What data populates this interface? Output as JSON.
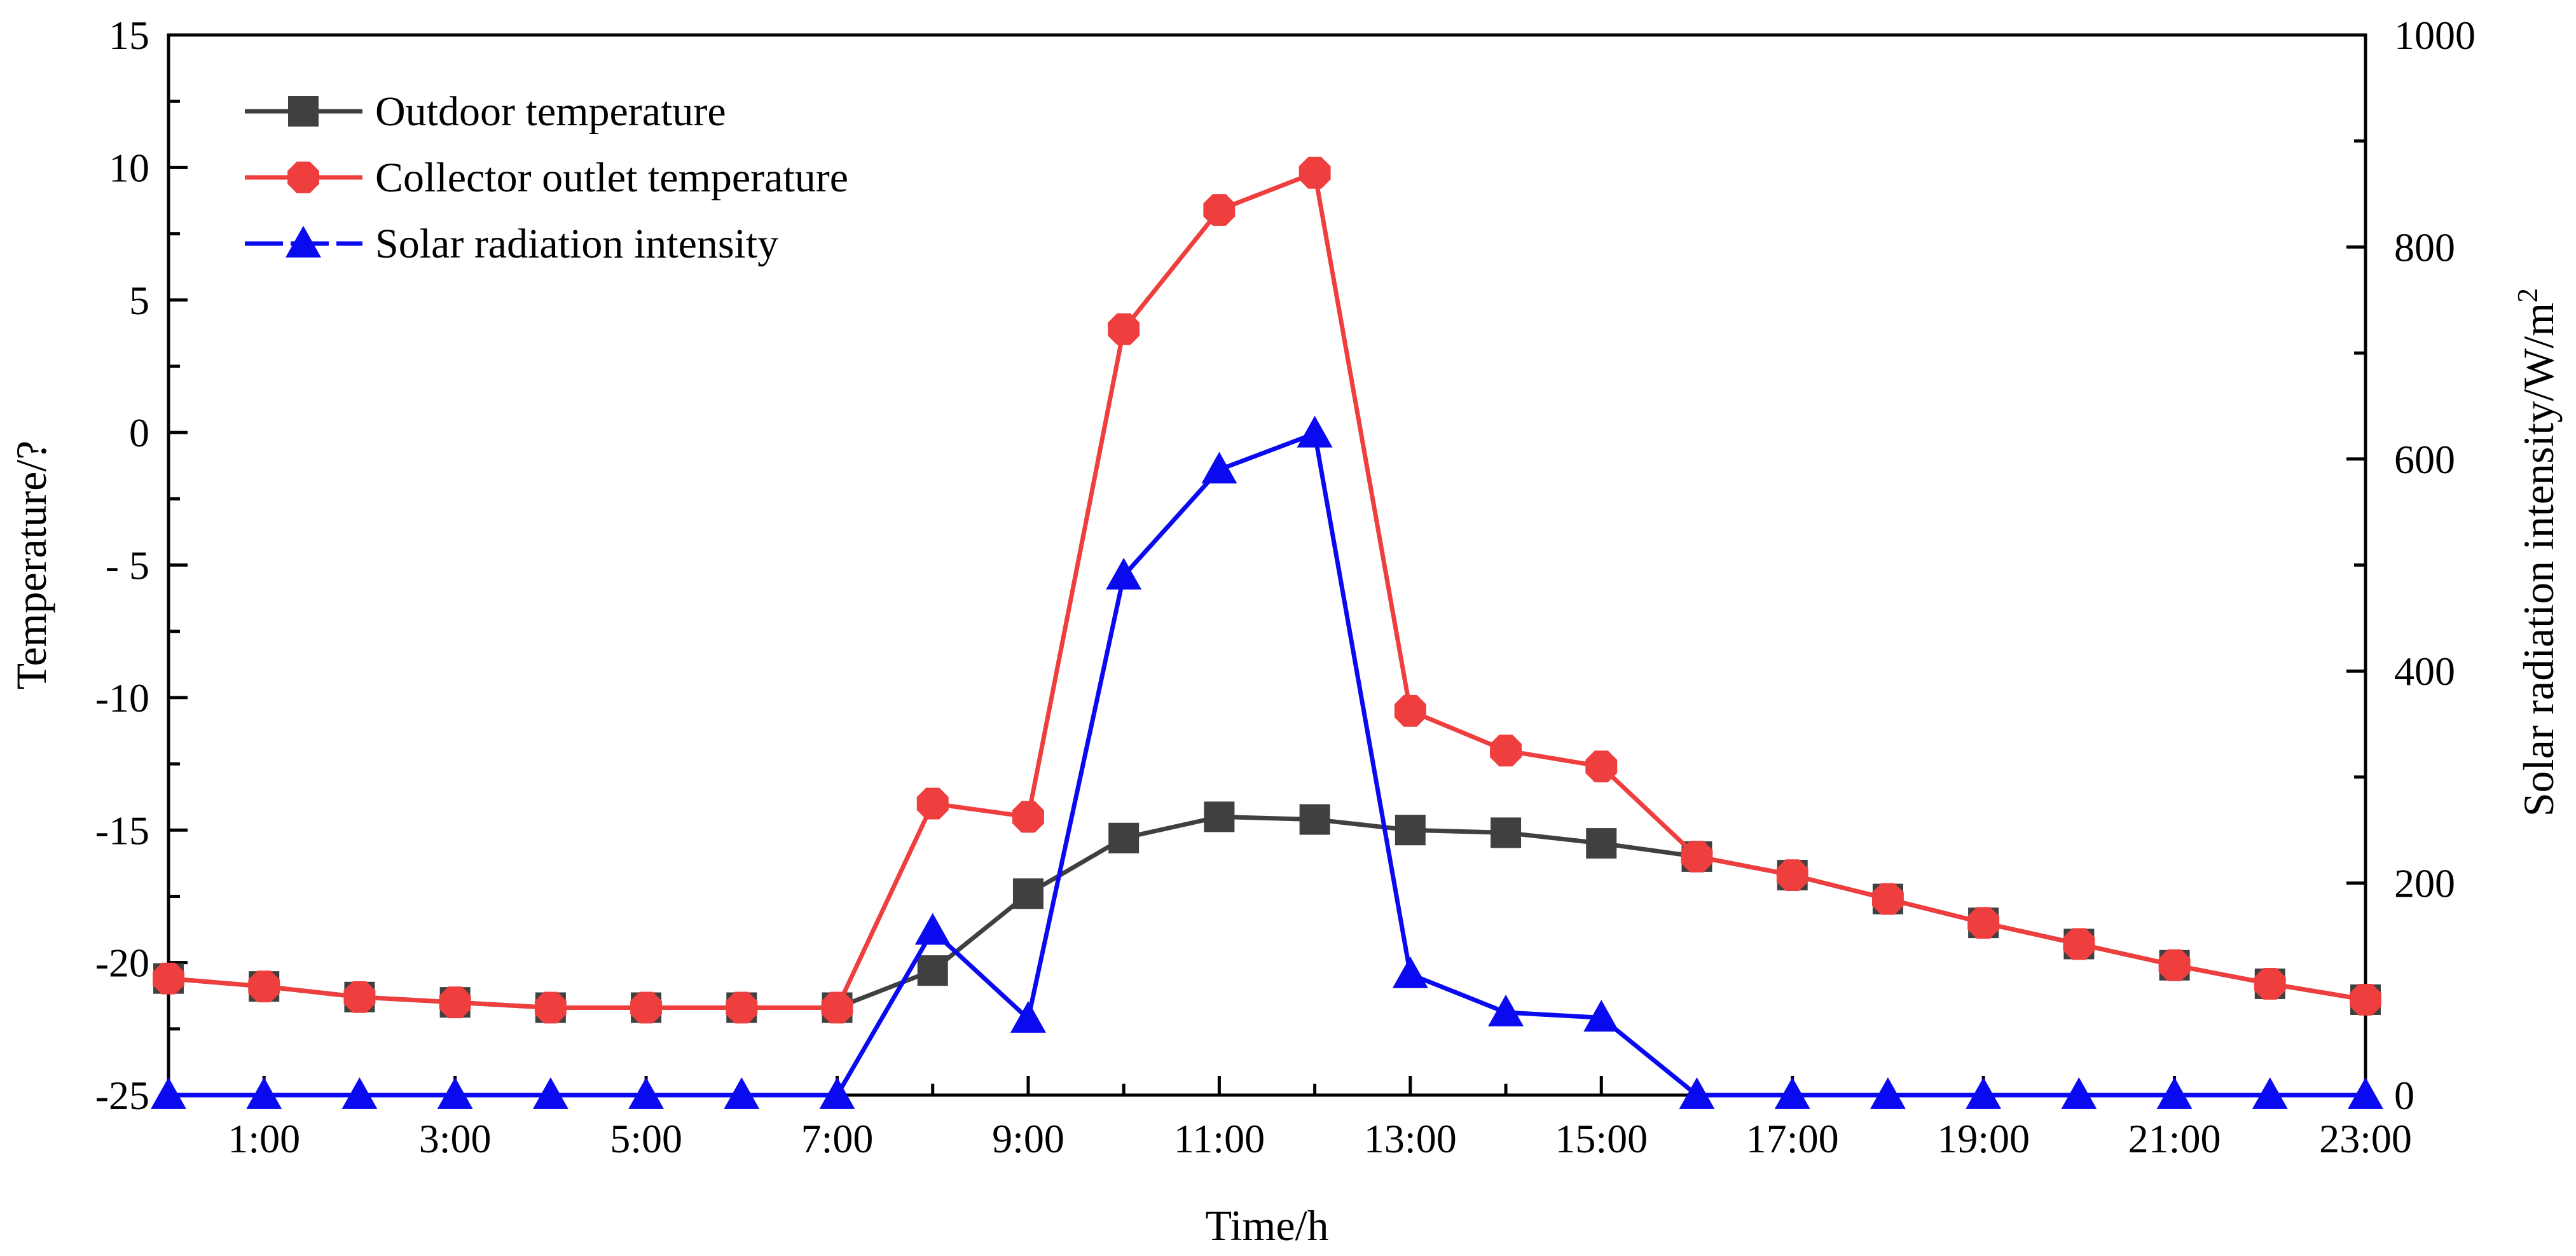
{
  "chart_data": {
    "type": "line",
    "title": "",
    "xlabel": "Time/h",
    "ylabel_left": "Temperature/?",
    "ylabel_right": "Solar radiation intensity/W/m",
    "ylabel_right_sup": "2",
    "x_hours": [
      0,
      1,
      2,
      3,
      4,
      5,
      6,
      7,
      8,
      9,
      10,
      11,
      12,
      13,
      14,
      15,
      16,
      17,
      18,
      19,
      20,
      21,
      22,
      23
    ],
    "xlim": [
      0,
      23
    ],
    "x_ticks_major": [
      {
        "hour": 1,
        "label": "1:00"
      },
      {
        "hour": 3,
        "label": "3:00"
      },
      {
        "hour": 5,
        "label": "5:00"
      },
      {
        "hour": 7,
        "label": "7:00"
      },
      {
        "hour": 9,
        "label": "9:00"
      },
      {
        "hour": 11,
        "label": "11:00"
      },
      {
        "hour": 13,
        "label": "13:00"
      },
      {
        "hour": 15,
        "label": "15:00"
      },
      {
        "hour": 17,
        "label": "17:00"
      },
      {
        "hour": 19,
        "label": "19:00"
      },
      {
        "hour": 21,
        "label": "21:00"
      },
      {
        "hour": 23,
        "label": "23:00"
      }
    ],
    "y_left": {
      "lim": [
        -25,
        15
      ],
      "ticks": [
        {
          "value": 15,
          "label": "15"
        },
        {
          "value": 10,
          "label": "10"
        },
        {
          "value": 5,
          "label": "5"
        },
        {
          "value": 0,
          "label": "0"
        },
        {
          "value": -5,
          "label": "- 5"
        },
        {
          "value": -10,
          "label": "-10"
        },
        {
          "value": -15,
          "label": "-15"
        },
        {
          "value": -20,
          "label": "-20"
        },
        {
          "value": -25,
          "label": "-25"
        }
      ]
    },
    "y_right": {
      "lim": [
        0,
        1000
      ],
      "ticks": [
        {
          "value": 1000,
          "label": "1000"
        },
        {
          "value": 800,
          "label": "800"
        },
        {
          "value": 600,
          "label": "600"
        },
        {
          "value": 400,
          "label": "400"
        },
        {
          "value": 200,
          "label": "200"
        },
        {
          "value": 0,
          "label": "0"
        }
      ],
      "minor_step": 100
    },
    "series": [
      {
        "name": "Outdoor temperature",
        "axis": "left",
        "color": "#404040",
        "marker": "square",
        "values": [
          -20.6,
          -20.9,
          -21.3,
          -21.5,
          -21.7,
          -21.7,
          -21.7,
          -21.7,
          -20.3,
          -17.4,
          -15.3,
          -14.5,
          -14.6,
          -15.0,
          -15.1,
          -15.5,
          -16.0,
          -16.7,
          -17.6,
          -18.5,
          -19.3,
          -20.1,
          -20.8,
          -21.4
        ]
      },
      {
        "name": "Collector outlet temperature",
        "axis": "left",
        "color": "#ef3e3e",
        "marker": "octagon",
        "values": [
          -20.6,
          -20.9,
          -21.3,
          -21.5,
          -21.7,
          -21.7,
          -21.7,
          -21.7,
          -14.0,
          -14.5,
          3.9,
          8.4,
          9.8,
          -10.5,
          -12.0,
          -12.6,
          -16.0,
          -16.7,
          -17.6,
          -18.5,
          -19.3,
          -20.1,
          -20.8,
          -21.4
        ]
      },
      {
        "name": "Solar radiation intensity",
        "axis": "right",
        "color": "#0a0af0",
        "marker": "triangle",
        "values": [
          0,
          0,
          0,
          0,
          0,
          0,
          0,
          0,
          155,
          72,
          490,
          590,
          624,
          114,
          78,
          73,
          0,
          0,
          0,
          0,
          0,
          0,
          0,
          0
        ]
      }
    ],
    "legend_position": "top-left",
    "grid": false
  }
}
